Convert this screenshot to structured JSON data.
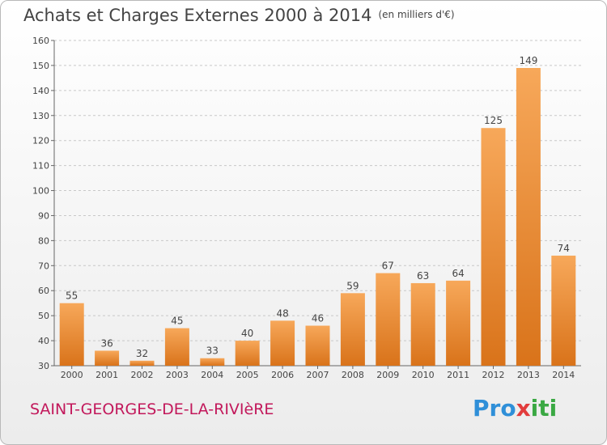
{
  "title": "Achats et Charges Externes 2000 à 2014",
  "unit": "(en milliers d'€)",
  "commune": "SAINT-GEORGES-DE-LA-RIVIèRE",
  "logo": {
    "p1": "Pro",
    "p2": "x",
    "p3": "iti"
  },
  "colors": {
    "bar_light": "#f7a85a",
    "bar_dark": "#d9731a",
    "title": "#444444",
    "commune": "#c2185b"
  },
  "chart_data": {
    "type": "bar",
    "title": "Achats et Charges Externes 2000 à 2014",
    "xlabel": "",
    "ylabel": "",
    "categories": [
      "2000",
      "2001",
      "2002",
      "2003",
      "2004",
      "2005",
      "2006",
      "2007",
      "2008",
      "2009",
      "2010",
      "2011",
      "2012",
      "2013",
      "2014"
    ],
    "values": [
      55,
      36,
      32,
      45,
      33,
      40,
      48,
      46,
      59,
      67,
      63,
      64,
      125,
      149,
      74
    ],
    "ylim": [
      30,
      160
    ],
    "yticks": [
      30,
      40,
      50,
      60,
      70,
      80,
      90,
      100,
      110,
      120,
      130,
      140,
      150,
      160
    ],
    "grid": "horizontal dashed",
    "legend": "none"
  }
}
